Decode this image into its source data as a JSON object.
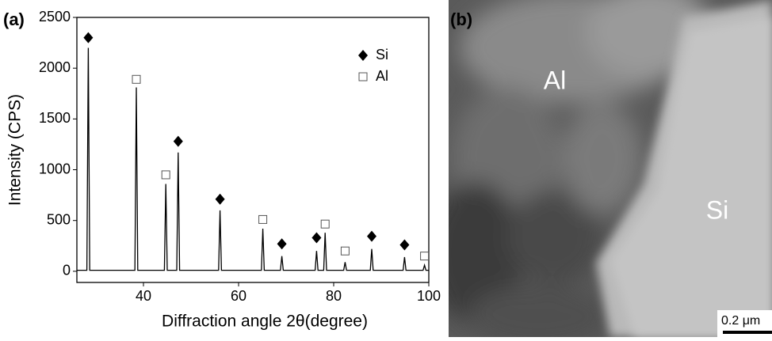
{
  "chart_data": {
    "type": "line",
    "panel_label": "(a)",
    "x_label": "Diffraction angle 2θ(degree)",
    "y_label": "Intensity (CPS)",
    "xlim": [
      26,
      100
    ],
    "ylim": [
      -110,
      2500
    ],
    "xticks": [
      40,
      60,
      80,
      100
    ],
    "yticks": [
      0,
      500,
      1000,
      1500,
      2000,
      2500
    ],
    "legend": "upper right",
    "series": [
      {
        "color": "#000000",
        "x": [
          26,
          28.1,
          28.4,
          28.7,
          38.2,
          38.5,
          38.8,
          44.4,
          44.7,
          45.0,
          47.0,
          47.3,
          47.6,
          55.8,
          56.1,
          56.4,
          64.8,
          65.1,
          65.4,
          68.8,
          69.1,
          69.4,
          76.1,
          76.4,
          76.7,
          77.9,
          78.2,
          78.5,
          82.1,
          82.4,
          82.7,
          87.7,
          88.0,
          88.3,
          94.6,
          94.9,
          95.2,
          98.8,
          99.1,
          99.4,
          100
        ],
        "values": [
          10,
          10,
          2200,
          10,
          10,
          1810,
          10,
          10,
          860,
          10,
          10,
          1170,
          10,
          10,
          600,
          10,
          10,
          420,
          10,
          10,
          150,
          10,
          10,
          200,
          10,
          10,
          380,
          10,
          10,
          90,
          10,
          10,
          220,
          10,
          10,
          140,
          10,
          10,
          60,
          10,
          10
        ]
      },
      {
        "name": "Si",
        "color": "#000000",
        "marker": "diamond",
        "x": [
          28.4,
          47.3,
          56.1,
          69.1,
          76.4,
          88.0,
          94.9
        ],
        "values": [
          2300,
          1280,
          710,
          270,
          330,
          345,
          260
        ]
      },
      {
        "name": "Al",
        "color": "#555555",
        "marker": "square",
        "x": [
          38.5,
          44.7,
          65.1,
          78.2,
          82.4,
          99.1
        ],
        "values": [
          1890,
          950,
          510,
          465,
          200,
          150
        ]
      }
    ]
  },
  "image": {
    "panel_label": "(b)",
    "labels": [
      "Al",
      "Si"
    ],
    "scale_bar": "0.2 μm"
  }
}
